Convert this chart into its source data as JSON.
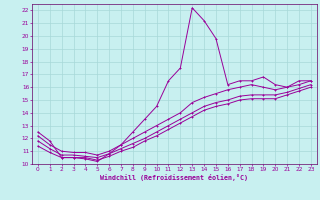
{
  "bg_color": "#c8f0f0",
  "grid_color": "#a8d8d8",
  "line_color": "#990099",
  "spine_color": "#660066",
  "title": "Windchill (Refroidissement éolien,°C)",
  "xlim": [
    -0.5,
    23.5
  ],
  "ylim": [
    10,
    22.5
  ],
  "xticks": [
    0,
    1,
    2,
    3,
    4,
    5,
    6,
    7,
    8,
    9,
    10,
    11,
    12,
    13,
    14,
    15,
    16,
    17,
    18,
    19,
    20,
    21,
    22,
    23
  ],
  "yticks": [
    10,
    11,
    12,
    13,
    14,
    15,
    16,
    17,
    18,
    19,
    20,
    21,
    22
  ],
  "curve1_x": [
    0,
    1,
    2,
    3,
    4,
    5,
    6,
    7,
    8,
    9,
    10,
    11,
    12,
    13,
    14,
    15,
    16,
    17,
    18,
    19,
    20,
    21,
    22,
    23
  ],
  "curve1_y": [
    12.5,
    11.8,
    10.5,
    10.5,
    10.4,
    10.2,
    10.8,
    11.5,
    12.5,
    13.5,
    14.5,
    16.5,
    17.5,
    22.2,
    21.2,
    19.8,
    16.2,
    16.5,
    16.5,
    16.8,
    16.2,
    16.0,
    16.5,
    16.5
  ],
  "curve2_x": [
    0,
    1,
    2,
    3,
    4,
    5,
    6,
    7,
    8,
    9,
    10,
    11,
    12,
    13,
    14,
    15,
    16,
    17,
    18,
    19,
    20,
    21,
    22,
    23
  ],
  "curve2_y": [
    12.2,
    11.5,
    11.0,
    10.9,
    10.9,
    10.7,
    11.0,
    11.5,
    12.0,
    12.5,
    13.0,
    13.5,
    14.0,
    14.8,
    15.2,
    15.5,
    15.8,
    16.0,
    16.2,
    16.0,
    15.8,
    16.0,
    16.2,
    16.5
  ],
  "curve3_x": [
    0,
    1,
    2,
    3,
    4,
    5,
    6,
    7,
    8,
    9,
    10,
    11,
    12,
    13,
    14,
    15,
    16,
    17,
    18,
    19,
    20,
    21,
    22,
    23
  ],
  "curve3_y": [
    11.8,
    11.2,
    10.7,
    10.7,
    10.6,
    10.5,
    10.8,
    11.2,
    11.6,
    12.0,
    12.5,
    13.0,
    13.5,
    14.0,
    14.5,
    14.8,
    15.0,
    15.3,
    15.4,
    15.4,
    15.4,
    15.6,
    15.9,
    16.2
  ],
  "curve4_x": [
    0,
    1,
    2,
    3,
    4,
    5,
    6,
    7,
    8,
    9,
    10,
    11,
    12,
    13,
    14,
    15,
    16,
    17,
    18,
    19,
    20,
    21,
    22,
    23
  ],
  "curve4_y": [
    11.4,
    10.9,
    10.5,
    10.5,
    10.5,
    10.3,
    10.6,
    11.0,
    11.3,
    11.8,
    12.2,
    12.7,
    13.2,
    13.7,
    14.2,
    14.5,
    14.7,
    15.0,
    15.1,
    15.1,
    15.1,
    15.4,
    15.7,
    16.0
  ]
}
